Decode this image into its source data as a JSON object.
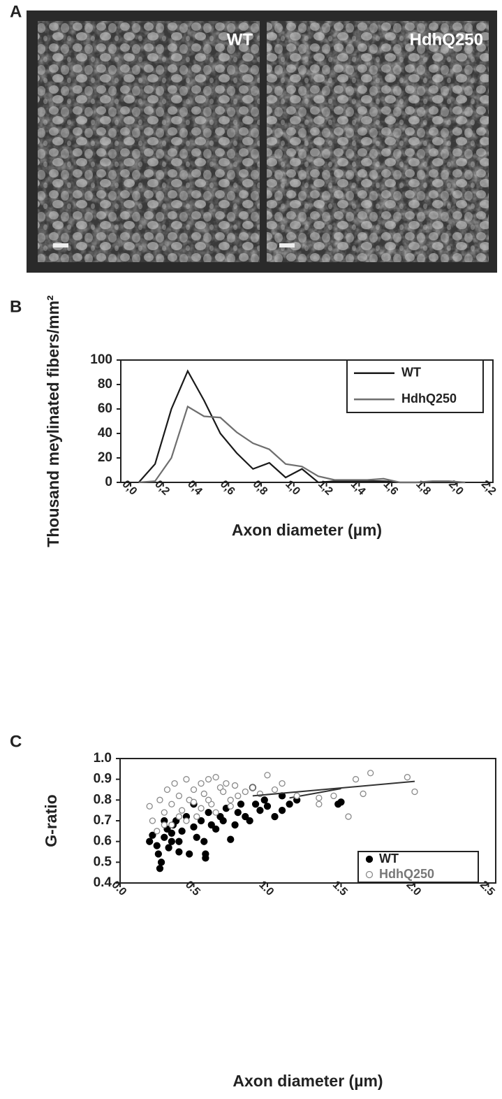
{
  "panels": [
    "A",
    "B",
    "C"
  ],
  "micrographs": [
    "WT",
    "HdhQ250"
  ],
  "chart_data": [
    {
      "type": "line",
      "y_label": "Thousand meylinated fibers/mm²",
      "x_label": "Axon diameter (µm)",
      "x": [
        0.05,
        0.15,
        0.25,
        0.35,
        0.45,
        0.55,
        0.65,
        0.75,
        0.85,
        0.95,
        1.05,
        1.15,
        1.25,
        1.35,
        1.45,
        1.55,
        1.65,
        1.75,
        1.85,
        1.95,
        2.05
      ],
      "series": [
        {
          "name": "WT",
          "color": "#1a1a1a",
          "values": [
            0,
            15,
            60,
            91,
            67,
            40,
            24,
            11,
            16,
            4,
            11,
            0,
            1,
            1,
            1,
            1,
            0,
            0,
            0,
            0,
            0
          ]
        },
        {
          "name": "HdhQ250",
          "color": "#6e6e6e",
          "values": [
            0,
            1,
            20,
            62,
            54,
            53,
            41,
            32,
            27,
            15,
            13,
            5,
            2,
            2,
            2,
            3,
            0,
            0,
            1,
            1,
            0
          ]
        }
      ],
      "xlim": [
        -0.06,
        2.22
      ],
      "ylim": [
        0,
        100
      ],
      "xticks": [
        {
          "value": 0,
          "label": "0,0"
        },
        {
          "value": 0.2,
          "label": "0,2"
        },
        {
          "value": 0.4,
          "label": "0,4"
        },
        {
          "value": 0.6,
          "label": "0,6"
        },
        {
          "value": 0.8,
          "label": "0,8"
        },
        {
          "value": 1.0,
          "label": "1,0"
        },
        {
          "value": 1.2,
          "label": "1,2"
        },
        {
          "value": 1.4,
          "label": "1,4"
        },
        {
          "value": 1.6,
          "label": "1,6"
        },
        {
          "value": 1.8,
          "label": "1,8"
        },
        {
          "value": 2.0,
          "label": "2,0"
        },
        {
          "value": 2.2,
          "label": "2,2"
        }
      ],
      "yticks": [
        0,
        20,
        40,
        60,
        80,
        100
      ],
      "legend": "upper right"
    },
    {
      "type": "scatter",
      "y_label": "G-ratio",
      "x_label": "Axon diameter (µm)",
      "series": [
        {
          "name": "WT",
          "color": "#000000",
          "marker": "filled",
          "x": [
            0.2,
            0.22,
            0.25,
            0.27,
            0.28,
            0.26,
            0.3,
            0.32,
            0.33,
            0.35,
            0.36,
            0.38,
            0.4,
            0.42,
            0.45,
            0.47,
            0.5,
            0.52,
            0.55,
            0.57,
            0.58,
            0.58,
            0.6,
            0.62,
            0.65,
            0.68,
            0.7,
            0.72,
            0.75,
            0.78,
            0.8,
            0.82,
            0.85,
            0.88,
            0.9,
            0.92,
            0.95,
            0.98,
            1.0,
            1.05,
            1.1,
            1.1,
            1.15,
            1.2,
            1.48,
            1.5,
            0.3,
            0.4,
            0.5,
            0.35
          ],
          "y": [
            0.6,
            0.63,
            0.58,
            0.47,
            0.5,
            0.54,
            0.62,
            0.66,
            0.57,
            0.6,
            0.68,
            0.7,
            0.55,
            0.65,
            0.72,
            0.54,
            0.67,
            0.62,
            0.7,
            0.6,
            0.52,
            0.54,
            0.74,
            0.68,
            0.66,
            0.72,
            0.7,
            0.76,
            0.61,
            0.68,
            0.74,
            0.78,
            0.72,
            0.7,
            0.86,
            0.78,
            0.75,
            0.8,
            0.77,
            0.72,
            0.75,
            0.82,
            0.78,
            0.8,
            0.78,
            0.79,
            0.7,
            0.6,
            0.78,
            0.64
          ],
          "fit": {
            "x": [
              1.15,
              1.5
            ],
            "y": [
              0.81,
              0.855
            ]
          }
        },
        {
          "name": "HdhQ250",
          "color": "#8a8a8a",
          "marker": "open",
          "x": [
            0.2,
            0.22,
            0.25,
            0.27,
            0.3,
            0.32,
            0.35,
            0.37,
            0.4,
            0.42,
            0.45,
            0.47,
            0.5,
            0.52,
            0.55,
            0.57,
            0.6,
            0.62,
            0.65,
            0.68,
            0.7,
            0.72,
            0.75,
            0.78,
            0.8,
            0.85,
            0.9,
            0.95,
            1.0,
            1.05,
            1.1,
            1.2,
            1.35,
            1.35,
            1.45,
            1.55,
            1.6,
            1.65,
            1.7,
            1.95,
            2.0,
            0.45,
            0.55,
            0.65,
            0.35,
            0.5,
            0.3,
            0.4,
            0.6,
            0.75
          ],
          "y": [
            0.77,
            0.7,
            0.65,
            0.8,
            0.74,
            0.85,
            0.78,
            0.88,
            0.82,
            0.75,
            0.9,
            0.8,
            0.85,
            0.72,
            0.88,
            0.83,
            0.9,
            0.78,
            0.91,
            0.86,
            0.84,
            0.88,
            0.8,
            0.87,
            0.82,
            0.84,
            0.86,
            0.83,
            0.92,
            0.85,
            0.88,
            0.82,
            0.81,
            0.78,
            0.82,
            0.72,
            0.9,
            0.83,
            0.93,
            0.91,
            0.84,
            0.7,
            0.76,
            0.74,
            0.68,
            0.79,
            0.68,
            0.72,
            0.8,
            0.77
          ],
          "fit": {
            "x": [
              0.9,
              2.0
            ],
            "y": [
              0.82,
              0.89
            ]
          }
        }
      ],
      "xlim": [
        0,
        2.55
      ],
      "ylim": [
        0.4,
        1.0
      ],
      "xticks": [
        {
          "value": 0,
          "label": "0.0"
        },
        0.5,
        {
          "value": 1,
          "label": "1.0"
        },
        1.5,
        {
          "value": 2,
          "label": "2.0"
        },
        2.5
      ],
      "yticks": [
        0.4,
        0.5,
        0.6,
        0.7,
        0.8,
        0.9,
        {
          "value": 1,
          "label": "1.0"
        }
      ],
      "legend": "lower right"
    }
  ]
}
